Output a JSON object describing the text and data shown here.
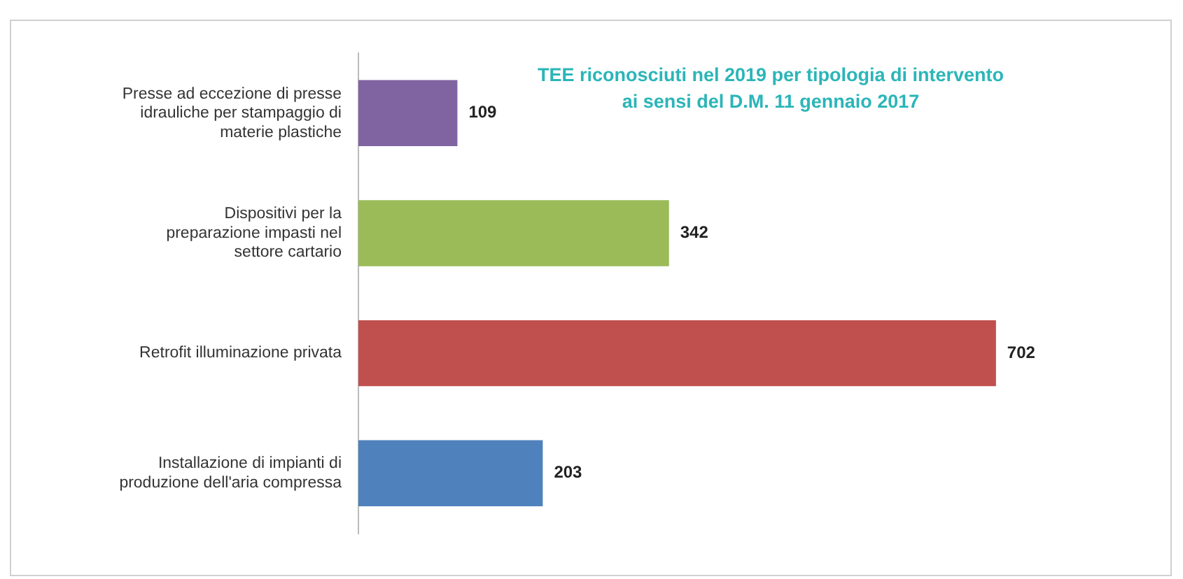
{
  "chart_data": {
    "type": "bar",
    "orientation": "horizontal",
    "title": "TEE riconosciuti  nel 2019 per tipologia di intervento ai sensi del D.M. 11 gennaio 2017",
    "categories": [
      "Presse ad eccezione di presse idrauliche per stampaggio di materie plastiche",
      "Dispositivi per la preparazione impasti nel settore cartario",
      "Retrofit illuminazione privata",
      "Installazione di impianti di produzione dell'aria compressa"
    ],
    "values": [
      109,
      342,
      702,
      203
    ],
    "colors": [
      "#8064a2",
      "#9bbb59",
      "#c0504d",
      "#4f81bd"
    ],
    "data_labels": true,
    "legend": false
  }
}
